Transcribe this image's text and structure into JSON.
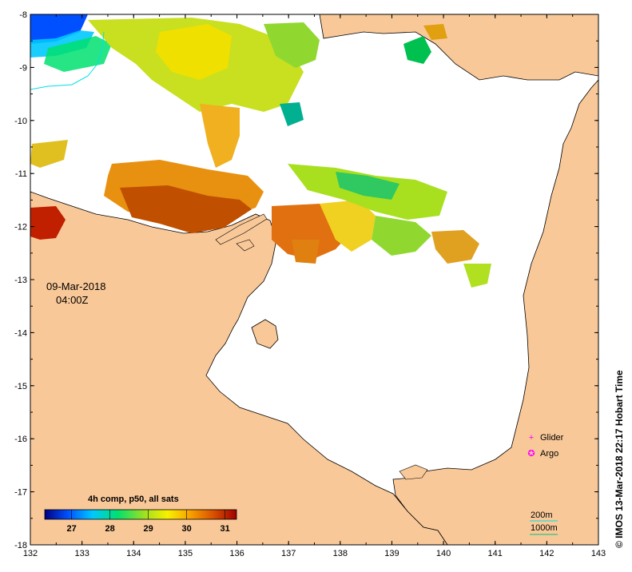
{
  "map": {
    "lon_range": [
      132,
      143
    ],
    "lat_range": [
      -18,
      -8
    ],
    "lon_ticks": [
      "132",
      "133",
      "134",
      "135",
      "136",
      "137",
      "138",
      "139",
      "140",
      "141",
      "142",
      "143"
    ],
    "lat_ticks": [
      "-8",
      "-9",
      "-10",
      "-11",
      "-12",
      "-13",
      "-14",
      "-15",
      "-16",
      "-17",
      "-18"
    ],
    "date": "09-Mar-2018",
    "time": "04:00Z",
    "land_color": "#f9c898",
    "sea_color": "#ffffff"
  },
  "legend": {
    "title": "4h comp, p50, all sats",
    "scale_min": 26.3,
    "scale_max": 31.3,
    "labels": [
      "27",
      "28",
      "29",
      "30",
      "31"
    ],
    "label_values": [
      27,
      28,
      29,
      30,
      31
    ],
    "colors": [
      "#00007f",
      "#0050ff",
      "#00c8ff",
      "#00e070",
      "#a0e020",
      "#f8f000",
      "#f8a000",
      "#d85000",
      "#a00000"
    ]
  },
  "markers": [
    {
      "label": "Glider",
      "symbol": "+",
      "color": "#ff00ff"
    },
    {
      "label": "Argo",
      "symbol": "✪",
      "color": "#ff00ff"
    }
  ],
  "contours": [
    {
      "label": "200m",
      "color": "#00ffff"
    },
    {
      "label": "1000m",
      "color": "#00c080"
    }
  ],
  "credit": "© IMOS 13-Mar-2018 22:17 Hobart Time"
}
